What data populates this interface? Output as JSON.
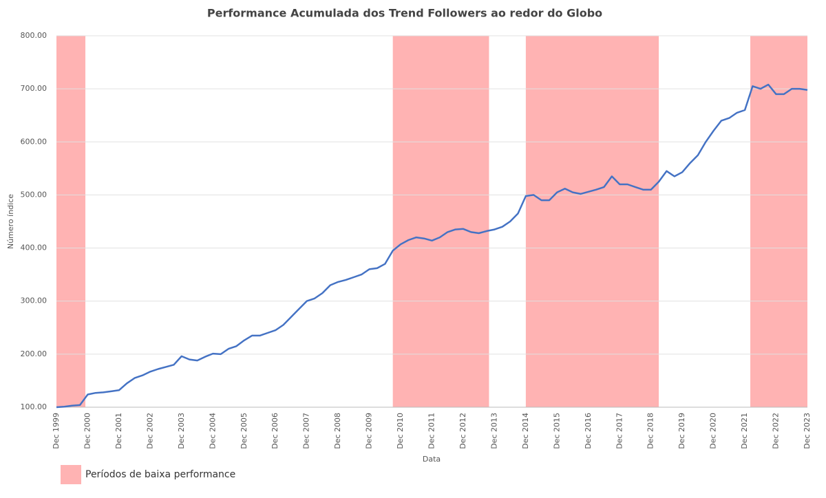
{
  "chart_data": {
    "type": "line",
    "title": "Performance Acumulada dos Trend Followers ao redor do Globo",
    "xlabel": "Data",
    "ylabel": "Número índice",
    "categories": [
      "Dec 1999",
      null,
      null,
      null,
      "Dec 2000",
      null,
      null,
      null,
      "Dec 2001",
      null,
      null,
      null,
      "Dec 2002",
      null,
      null,
      null,
      "Dec 2003",
      null,
      null,
      null,
      "Dec 2004",
      null,
      null,
      null,
      "Dec 2005",
      null,
      null,
      null,
      "Dec 2006",
      null,
      null,
      null,
      "Dec 2007",
      null,
      null,
      null,
      "Dec 2008",
      null,
      null,
      null,
      "Dec 2009",
      null,
      null,
      null,
      "Dec 2010",
      null,
      null,
      null,
      "Dec 2011",
      null,
      null,
      null,
      "Dec 2012",
      null,
      null,
      null,
      "Dec 2013",
      null,
      null,
      null,
      "Dec 2014",
      null,
      null,
      null,
      "Dec 2015",
      null,
      null,
      null,
      "Dec 2016",
      null,
      null,
      null,
      "Dec 2017",
      null,
      null,
      null,
      "Dec 2018",
      null,
      null,
      null,
      "Dec 2019",
      null,
      null,
      null,
      "Dec 2020",
      null,
      null,
      null,
      "Dec 2021",
      null,
      null,
      null,
      "Dec 2022",
      null,
      null,
      null,
      "Dec 2023"
    ],
    "series": [
      {
        "name": "Performance",
        "color": "#4472c4",
        "values": [
          100,
          101,
          103,
          104,
          124,
          127,
          128,
          130,
          132,
          145,
          155,
          160,
          167,
          172,
          176,
          180,
          196,
          190,
          188,
          195,
          201,
          200,
          210,
          215,
          226,
          235,
          235,
          240,
          245,
          255,
          270,
          285,
          300,
          305,
          315,
          330,
          336,
          340,
          345,
          350,
          360,
          362,
          370,
          395,
          407,
          415,
          420,
          418,
          414,
          420,
          430,
          435,
          436,
          430,
          428,
          432,
          435,
          440,
          450,
          465,
          498,
          500,
          490,
          490,
          505,
          512,
          505,
          502,
          506,
          510,
          515,
          535,
          520,
          520,
          515,
          510,
          510,
          525,
          545,
          535,
          543,
          560,
          575,
          600,
          621,
          640,
          645,
          655,
          660,
          705,
          700,
          708,
          690,
          690,
          700,
          700,
          698
        ]
      }
    ],
    "shaded_periods": [
      {
        "start": 0,
        "end": 3.7
      },
      {
        "start": 43,
        "end": 55.3
      },
      {
        "start": 60,
        "end": 77
      },
      {
        "start": 88.7,
        "end": 96
      }
    ],
    "shaded_name": "Períodos de baixa performance",
    "shaded_color": "#ffb3b3",
    "ylim": [
      100,
      800
    ],
    "yticks": [
      {
        "value": 100,
        "label": "100.00"
      },
      {
        "value": 200,
        "label": "200.00"
      },
      {
        "value": 300,
        "label": "300.00"
      },
      {
        "value": 400,
        "label": "400.00"
      },
      {
        "value": 500,
        "label": "500.00"
      },
      {
        "value": 600,
        "label": "600.00"
      },
      {
        "value": 700,
        "label": "700.00"
      },
      {
        "value": 800,
        "label": "800.00"
      }
    ],
    "grid": true
  }
}
